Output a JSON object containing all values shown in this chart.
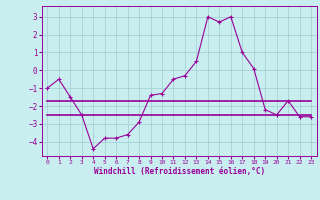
{
  "xlabel": "Windchill (Refroidissement éolien,°C)",
  "background_color": "#c8eef0",
  "line_color": "#990099",
  "x": [
    0,
    1,
    2,
    3,
    4,
    5,
    6,
    7,
    8,
    9,
    10,
    11,
    12,
    13,
    14,
    15,
    16,
    17,
    18,
    19,
    20,
    21,
    22,
    23
  ],
  "y_main": [
    -1.0,
    -0.5,
    -1.5,
    -2.5,
    -4.4,
    -3.8,
    -3.8,
    -3.6,
    -2.9,
    -1.4,
    -1.3,
    -0.5,
    -0.3,
    0.5,
    3.0,
    2.7,
    3.0,
    1.0,
    0.1,
    -2.2,
    -2.5,
    -1.7,
    -2.6,
    -2.6
  ],
  "y_avg": [
    -1.7,
    -1.7,
    -1.7,
    -1.7,
    -1.7,
    -1.7,
    -1.7,
    -1.7,
    -1.7,
    -1.7,
    -1.7,
    -1.7,
    -1.7,
    -1.7,
    -1.7,
    -1.7,
    -1.7,
    -1.7,
    -1.7,
    -1.7,
    -1.7,
    -1.7,
    -1.7,
    -1.7
  ],
  "y_avg2": [
    -2.5,
    -2.5,
    -2.5,
    -2.5,
    -2.5,
    -2.5,
    -2.5,
    -2.5,
    -2.5,
    -2.5,
    -2.5,
    -2.5,
    -2.5,
    -2.5,
    -2.5,
    -2.5,
    -2.5,
    -2.5,
    -2.5,
    -2.5,
    -2.5,
    -2.5,
    -2.5,
    -2.5
  ],
  "ylim": [
    -4.8,
    3.6
  ],
  "xlim": [
    -0.5,
    23.5
  ],
  "yticks": [
    -4,
    -3,
    -2,
    -1,
    0,
    1,
    2,
    3
  ],
  "xticks": [
    0,
    1,
    2,
    3,
    4,
    5,
    6,
    7,
    8,
    9,
    10,
    11,
    12,
    13,
    14,
    15,
    16,
    17,
    18,
    19,
    20,
    21,
    22,
    23
  ],
  "grid_color": "#a0ccd0",
  "marker": "+",
  "markersize": 3,
  "linewidth": 0.8
}
